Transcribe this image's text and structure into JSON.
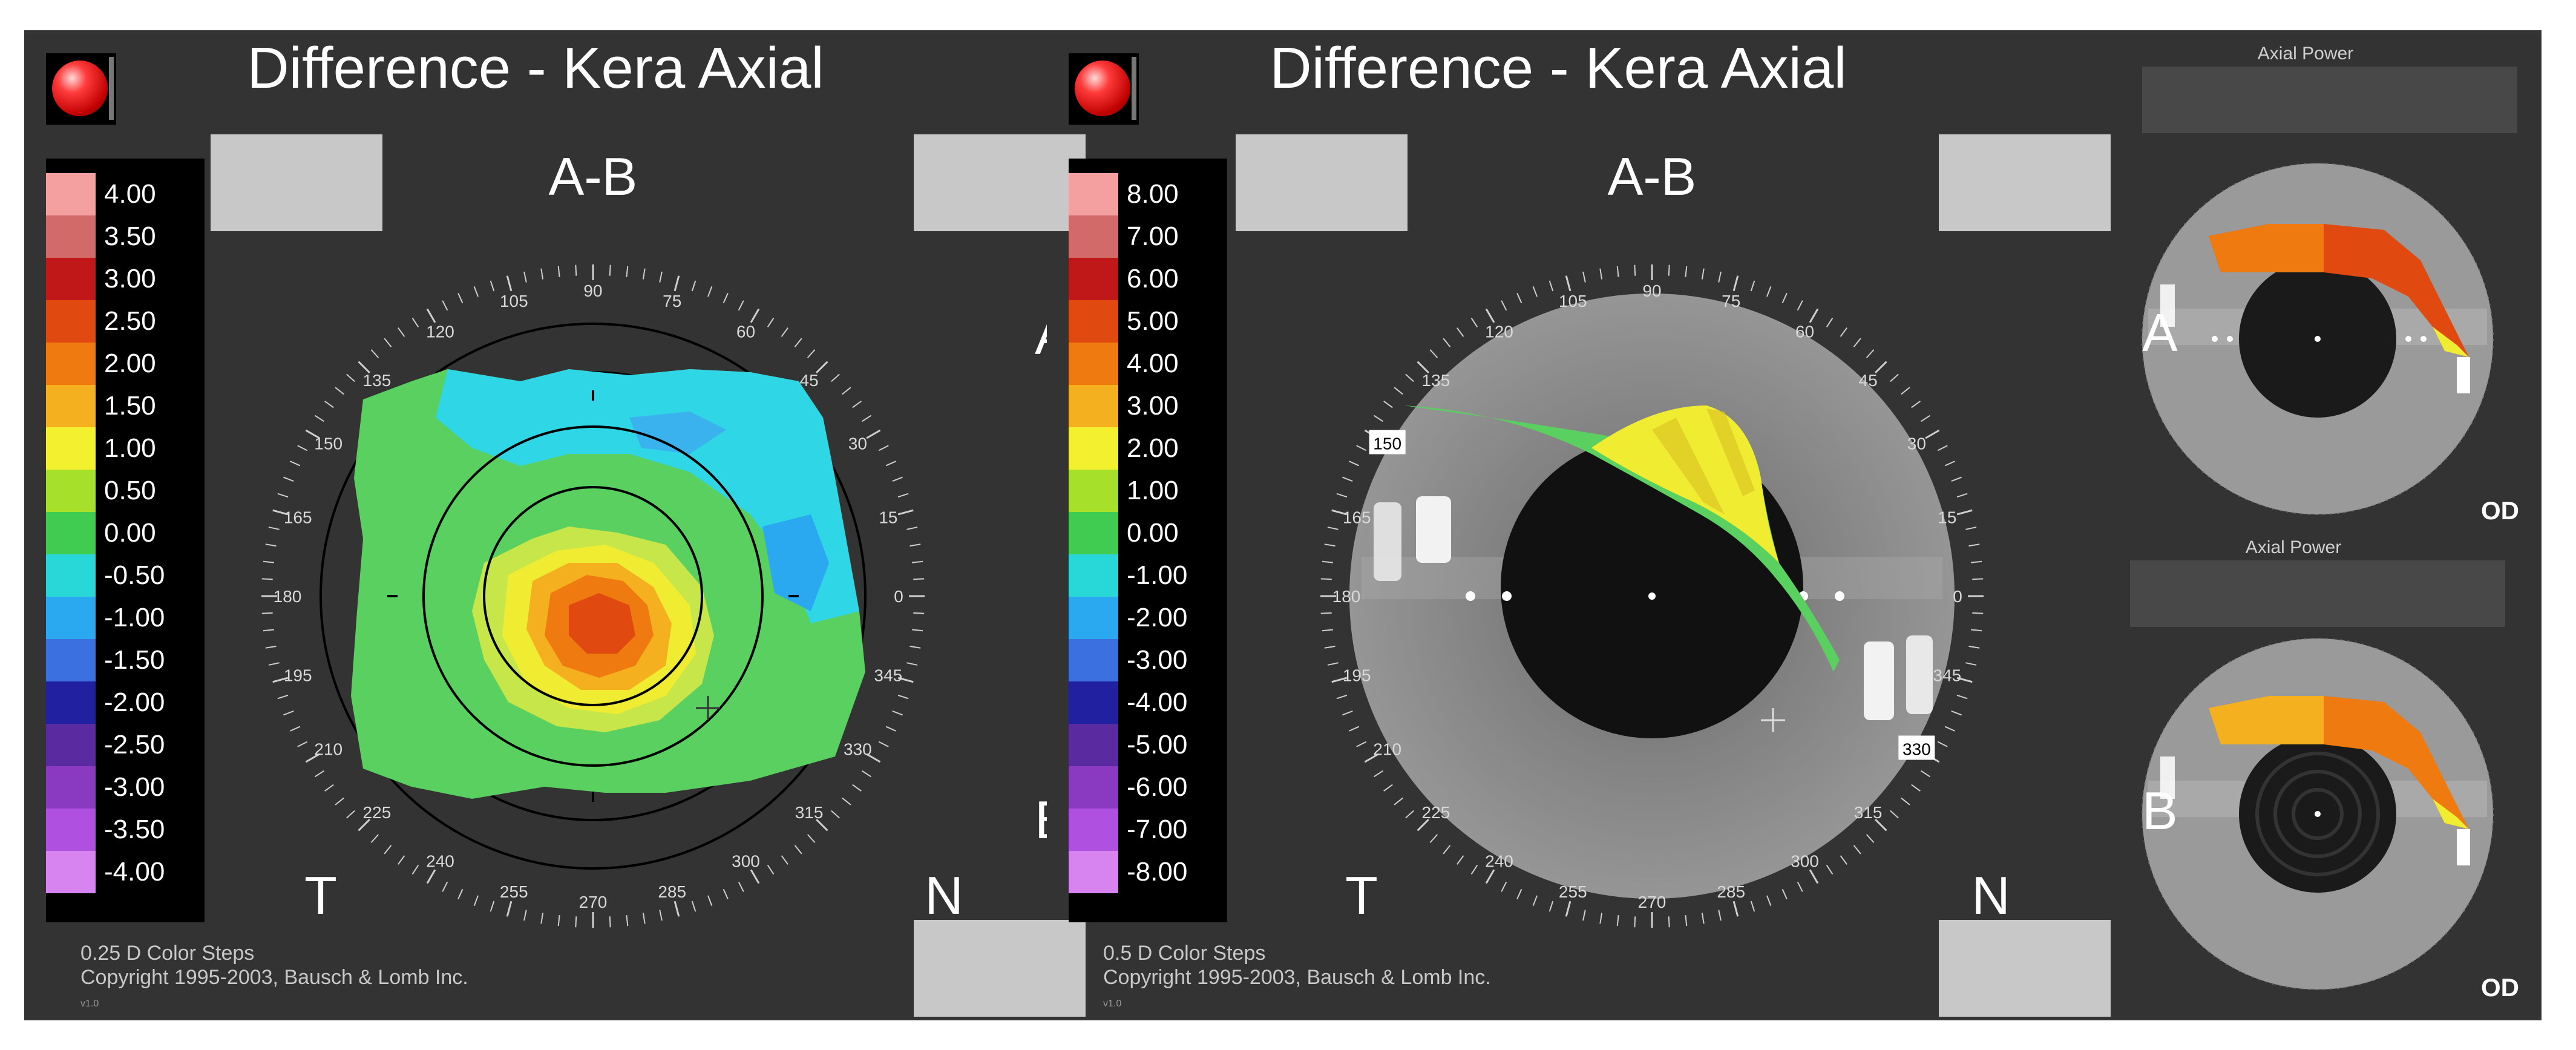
{
  "left_panel": {
    "title": "Difference - Kera Axial",
    "header_label": "A-B",
    "left_label": "T",
    "right_label": "N",
    "edge_label_top": "A",
    "edge_label_bottom": "B",
    "scale_labels": [
      "4.00",
      "3.50",
      "3.00",
      "2.50",
      "2.00",
      "1.50",
      "1.00",
      "0.50",
      "0.00",
      "-0.50",
      "-1.00",
      "-1.50",
      "-2.00",
      "-2.50",
      "-3.00",
      "-3.50",
      "-4.00"
    ],
    "scale_colors": [
      "#f4a0a0",
      "#d26a6a",
      "#c01818",
      "#e04a10",
      "#ee7a10",
      "#f5b020",
      "#f3f030",
      "#a6e02a",
      "#40cc50",
      "#28d8d8",
      "#2aa8f0",
      "#3a70e0",
      "#2020a0",
      "#5a2aa0",
      "#8a3ac0",
      "#b050e0",
      "#d884f0"
    ],
    "angle_labels": [
      "0",
      "15",
      "30",
      "45",
      "60",
      "75",
      "90",
      "105",
      "120",
      "135",
      "150",
      "165",
      "180",
      "195",
      "210",
      "225",
      "240",
      "255",
      "270",
      "285",
      "300",
      "315",
      "330",
      "345"
    ],
    "footnote_steps": "0.25 D Color Steps",
    "footnote_copyright": "Copyright 1995-2003, Bausch & Lomb Inc.",
    "version": "v1.0"
  },
  "mid_panel": {
    "title": "Difference - Kera Axial",
    "header_label": "A-B",
    "left_label": "T",
    "right_label": "N",
    "scale_labels": [
      "8.00",
      "7.00",
      "6.00",
      "5.00",
      "4.00",
      "3.00",
      "2.00",
      "1.00",
      "0.00",
      "-1.00",
      "-2.00",
      "-3.00",
      "-4.00",
      "-5.00",
      "-6.00",
      "-7.00",
      "-8.00"
    ],
    "angle_labels": [
      "0",
      "15",
      "30",
      "45",
      "60",
      "75",
      "90",
      "105",
      "120",
      "135",
      "150",
      "165",
      "180",
      "195",
      "210",
      "225",
      "240",
      "255",
      "270",
      "285",
      "300",
      "315",
      "330",
      "345"
    ],
    "boxed_angles": [
      "150",
      "330"
    ],
    "footnote_steps": "0.5 D Color Steps",
    "footnote_copyright": "Copyright 1995-2003, Bausch & Lomb Inc.",
    "version": "v1.0"
  },
  "right_panel": {
    "top": {
      "title": "Axial Power",
      "side_label": "A",
      "eye_label": "OD"
    },
    "bottom": {
      "title": "Axial Power",
      "side_label": "B",
      "eye_label": "OD"
    }
  },
  "colors": {
    "background": "#333333",
    "ring": "#000000",
    "panel_text": "#ffffff",
    "gray_box": "#c8c8c8"
  }
}
